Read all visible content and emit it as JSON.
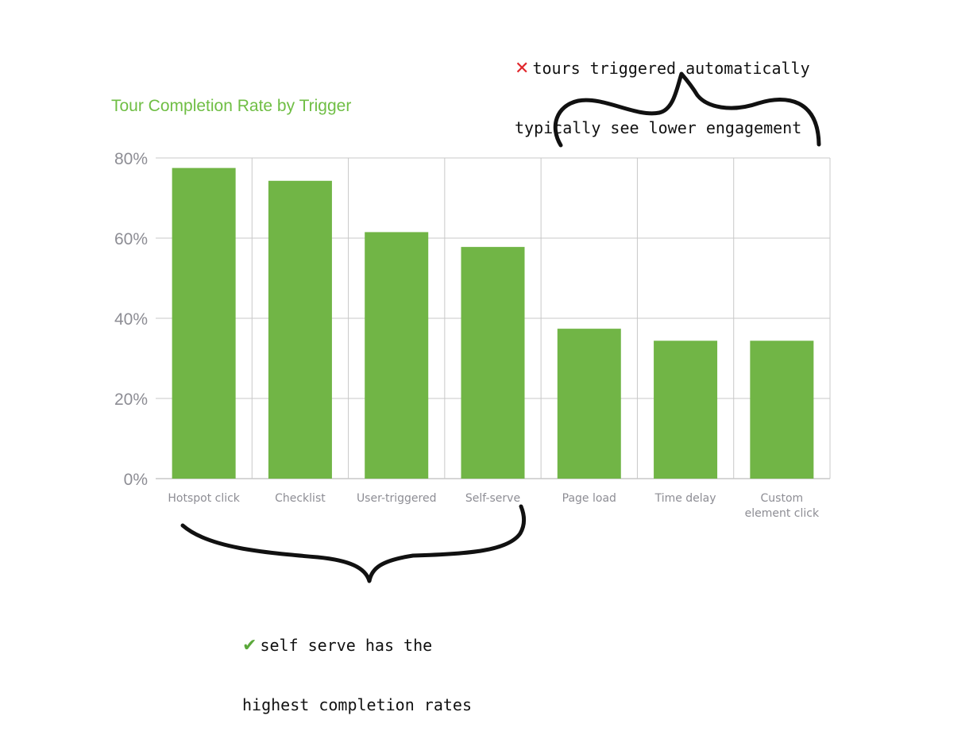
{
  "chart_data": {
    "type": "bar",
    "title": "Tour Completion Rate by Trigger",
    "categories": [
      [
        "Hotspot click"
      ],
      [
        "Checklist"
      ],
      [
        "User-triggered"
      ],
      [
        "Self-serve"
      ],
      [
        "Page load"
      ],
      [
        "Time delay"
      ],
      [
        "Custom",
        "element click"
      ]
    ],
    "values": [
      77.5,
      74.3,
      61.5,
      57.8,
      37.4,
      34.4,
      34.4
    ],
    "ylim": [
      0,
      80
    ],
    "yticks": [
      0,
      20,
      40,
      60,
      80
    ],
    "ytick_labels": [
      "0%",
      "20%",
      "40%",
      "60%",
      "80%"
    ],
    "grid": true,
    "colors": {
      "bar": "#71b546",
      "title": "#6fbe44",
      "grid": "#c8c8c8",
      "tick_text": "#8d8d94"
    }
  },
  "annotations": {
    "top": {
      "icon": "cross-mark-icon",
      "lines": [
        "tours triggered automatically",
        "typically see lower engagement"
      ]
    },
    "bottom": {
      "icon": "check-mark-icon",
      "lines": [
        "self serve has the",
        "highest completion rates"
      ]
    }
  }
}
